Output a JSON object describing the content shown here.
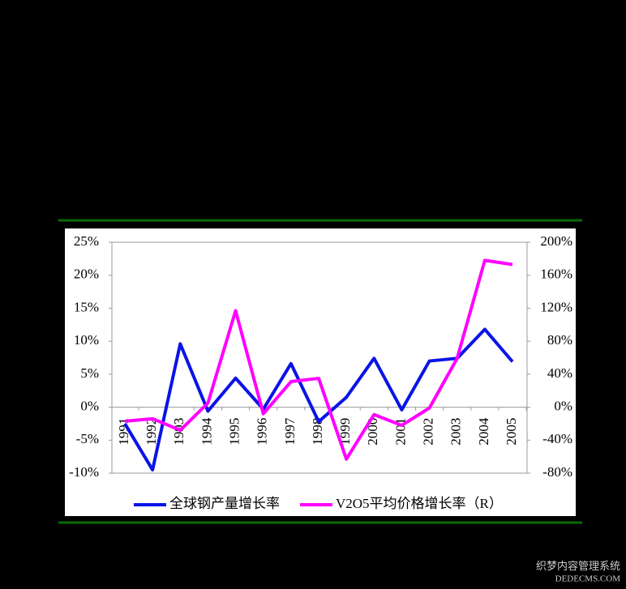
{
  "chart_data": {
    "type": "line",
    "categories": [
      "1991",
      "1992",
      "1993",
      "1994",
      "1995",
      "1996",
      "1997",
      "1998",
      "1999",
      "2000",
      "2001",
      "2002",
      "2003",
      "2004",
      "2005"
    ],
    "series": [
      {
        "name": "全球钢产量增长率",
        "color": "#0a14e6",
        "values": [
          -2.5,
          -9.5,
          9.6,
          -0.6,
          4.4,
          -0.3,
          6.6,
          -2.2,
          1.5,
          7.4,
          -0.4,
          7.0,
          7.4,
          11.8,
          6.9
        ]
      },
      {
        "name": "V2O5平均价格增长率（R）",
        "color": "#ff00ff",
        "axis": "y2",
        "values": [
          -17,
          -14,
          -28,
          5,
          117,
          -8,
          31,
          35,
          -63,
          -9,
          -22,
          -1,
          59,
          178,
          173
        ]
      }
    ],
    "ylim": [
      -10,
      25
    ],
    "yticks": [
      {
        "value": -10,
        "label": "-10%"
      },
      {
        "value": -5,
        "label": "-5%"
      },
      {
        "value": 0,
        "label": "0%"
      },
      {
        "value": 5,
        "label": "5%"
      },
      {
        "value": 10,
        "label": "10%"
      },
      {
        "value": 15,
        "label": "15%"
      },
      {
        "value": 20,
        "label": "20%"
      },
      {
        "value": 25,
        "label": "25%"
      }
    ],
    "y2lim": [
      -80,
      200
    ],
    "y2ticks": [
      {
        "value": -80,
        "label": "-80%"
      },
      {
        "value": -40,
        "label": "-40%"
      },
      {
        "value": 0,
        "label": "0%"
      },
      {
        "value": 40,
        "label": "40%"
      },
      {
        "value": 80,
        "label": "80%"
      },
      {
        "value": 120,
        "label": "120%"
      },
      {
        "value": 160,
        "label": "160%"
      },
      {
        "value": 200,
        "label": "200%"
      }
    ],
    "legend": "bottom",
    "watermark": [
      "织梦内容管理系统",
      "DEDECMS.COM"
    ]
  }
}
